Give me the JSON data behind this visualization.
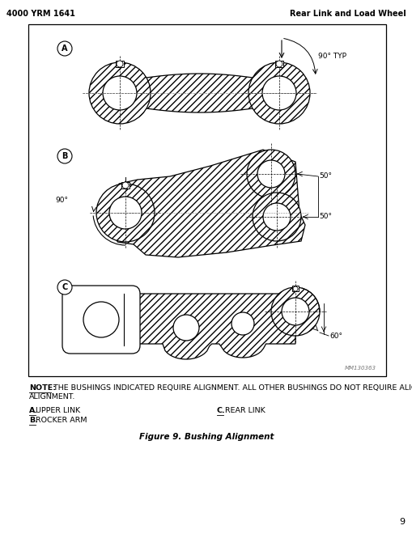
{
  "page_number": "9",
  "header_left": "4000 YRM 1641",
  "header_right": "Rear Link and Load Wheel",
  "note_bold": "NOTE:",
  "note_rest": " THE BUSHINGS INDICATED REQUIRE ALIGNMENT. ALL OTHER BUSHINGS DO NOT REQUIRE ALIGNMENT.",
  "label_a_letter": "A.",
  "label_a_text": "  UPPER LINK",
  "label_b_letter": "B.",
  "label_b_text": "  ROCKER ARM",
  "label_c_letter": "C.",
  "label_c_text": "   REAR LINK",
  "figure_caption": "Figure 9. Bushing Alignment",
  "watermark": "MM130363",
  "bg_color": "#ffffff",
  "line_color": "#000000",
  "angle_90_typ": "90° TYP",
  "angle_90": "90°",
  "angle_50a": "50°",
  "angle_50b": "50°",
  "angle_60": "60°"
}
